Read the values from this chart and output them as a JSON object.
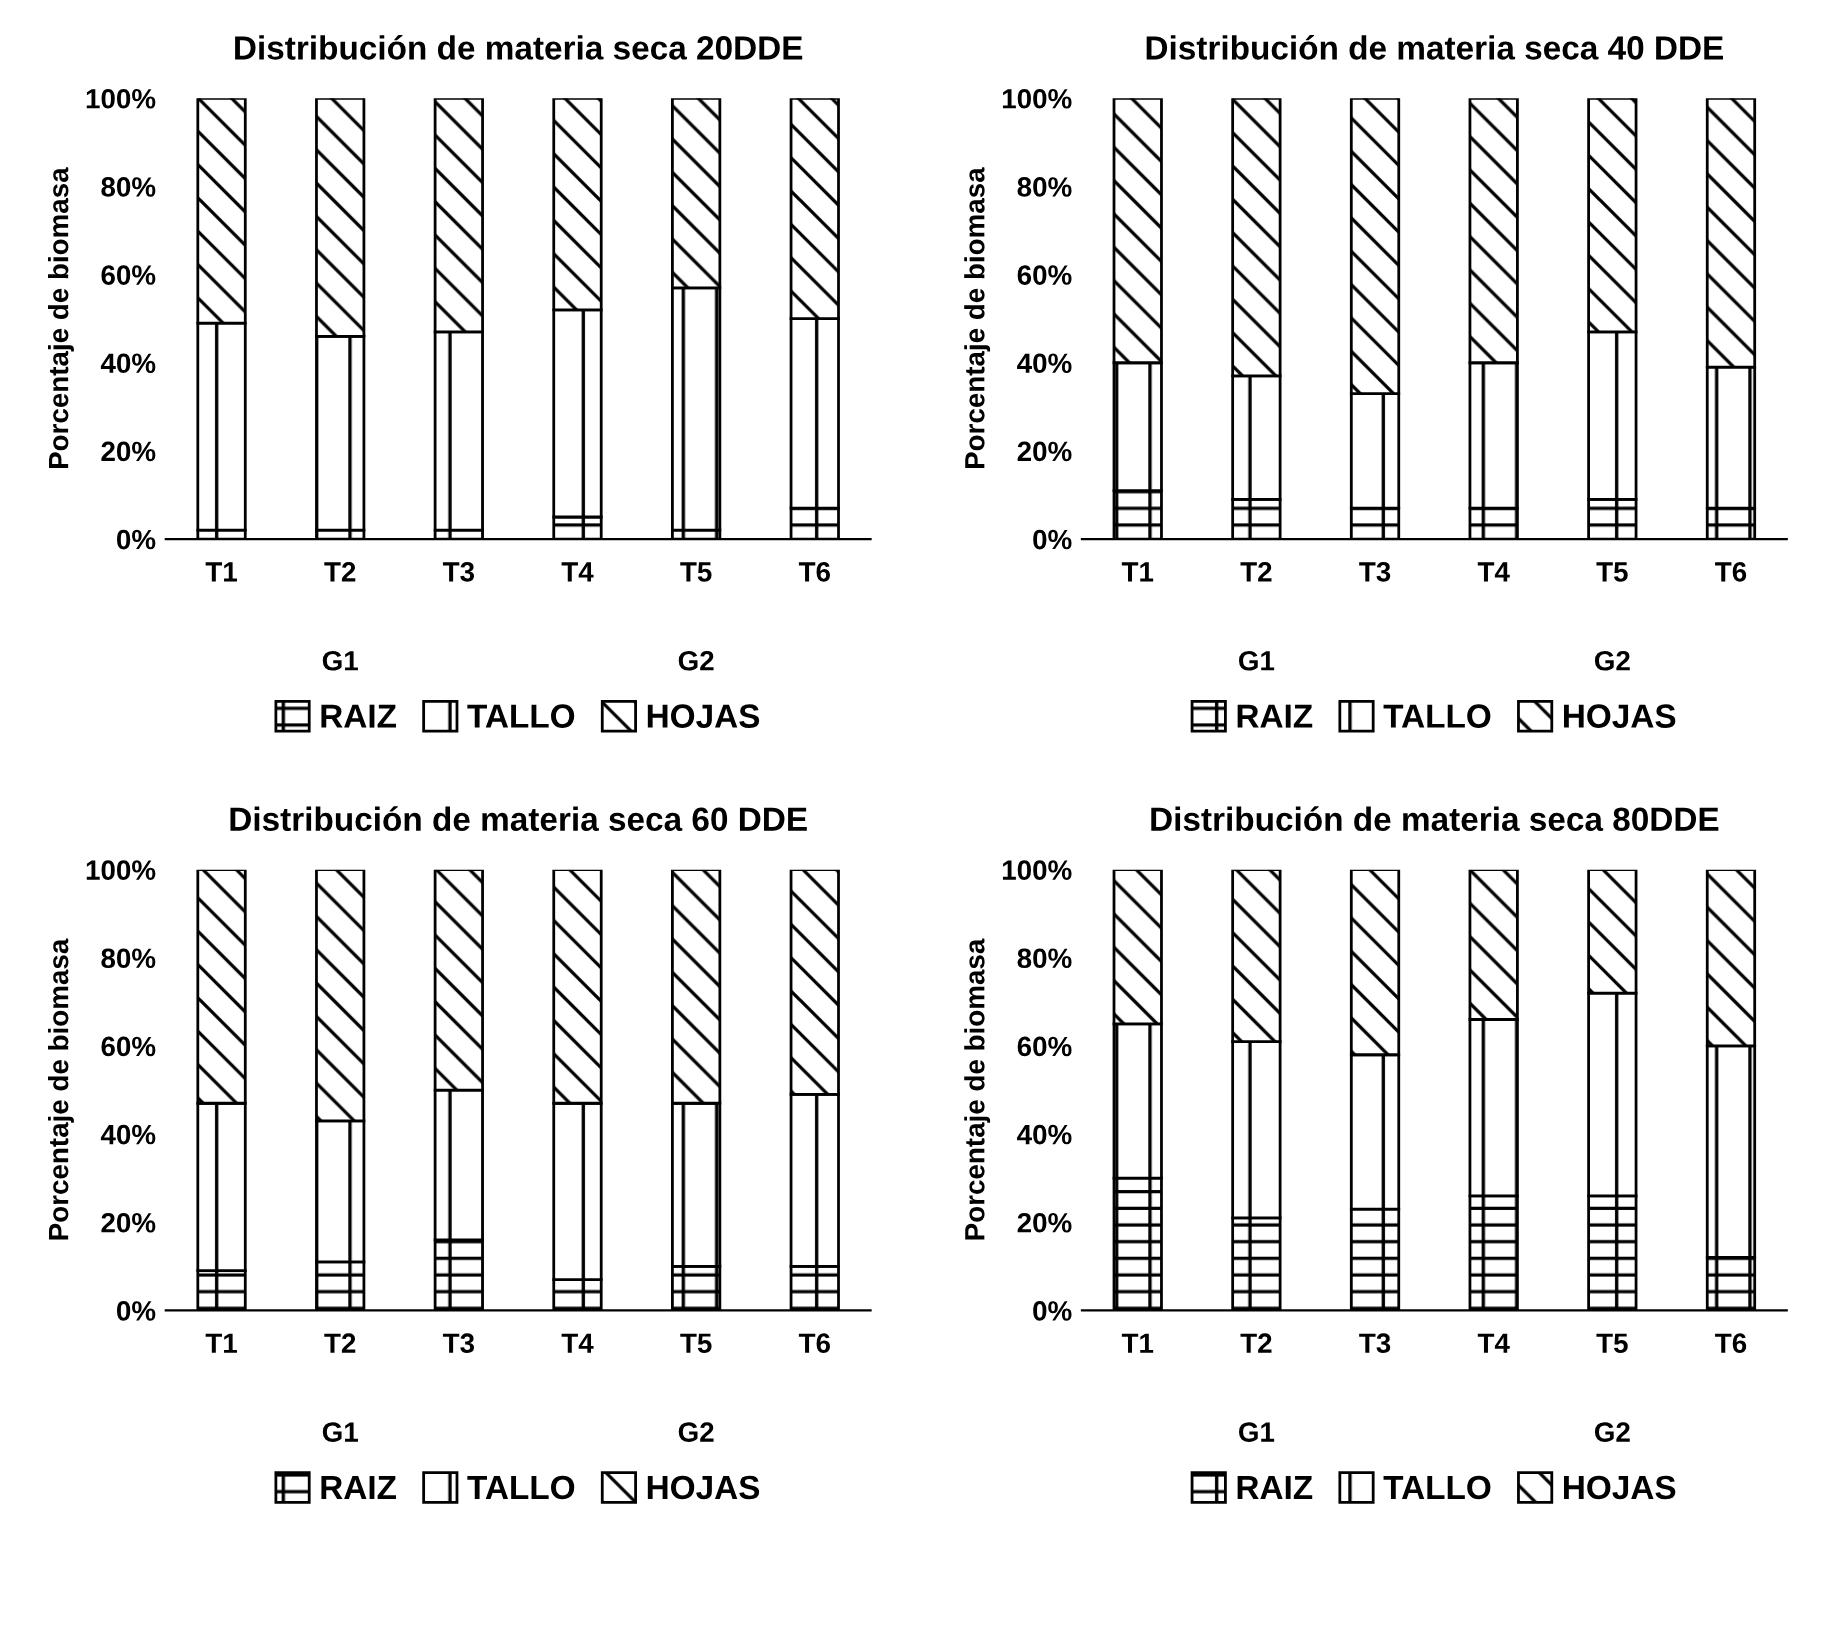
{
  "chart_data": [
    {
      "type": "bar",
      "title": "Distribución de materia seca 20DDE",
      "ylabel": "Porcentaje de biomasa",
      "stacked": true,
      "legend": "bottom",
      "grid": false,
      "categories": [
        "T1",
        "T2",
        "T3",
        "T4",
        "T5",
        "T6"
      ],
      "annotations": [
        "G1",
        "G2"
      ],
      "ylim": [
        0,
        100
      ],
      "yticks": [
        {
          "value": 0,
          "label": "0%"
        },
        {
          "value": 20,
          "label": "20%"
        },
        {
          "value": 40,
          "label": "40%"
        },
        {
          "value": 60,
          "label": "60%"
        },
        {
          "value": 80,
          "label": "80%"
        },
        {
          "value": 100,
          "label": "100%"
        }
      ],
      "series": [
        {
          "name": "RAIZ",
          "color": "#000000",
          "values": [
            2,
            2,
            2,
            5,
            2,
            7
          ]
        },
        {
          "name": "TALLO",
          "color": "#000000",
          "values": [
            47,
            44,
            45,
            47,
            55,
            43
          ]
        },
        {
          "name": "HOJAS",
          "color": "#000000",
          "values": [
            51,
            54,
            53,
            48,
            43,
            50
          ]
        }
      ]
    },
    {
      "type": "bar",
      "title": "Distribución de materia seca 40 DDE",
      "ylabel": "Porcentaje de biomasa",
      "stacked": true,
      "legend": "bottom",
      "grid": false,
      "categories": [
        "T1",
        "T2",
        "T3",
        "T4",
        "T5",
        "T6"
      ],
      "annotations": [
        "G1",
        "G2"
      ],
      "ylim": [
        0,
        100
      ],
      "yticks": [
        {
          "value": 0,
          "label": "0%"
        },
        {
          "value": 20,
          "label": "20%"
        },
        {
          "value": 40,
          "label": "40%"
        },
        {
          "value": 60,
          "label": "60%"
        },
        {
          "value": 80,
          "label": "80%"
        },
        {
          "value": 100,
          "label": "100%"
        }
      ],
      "series": [
        {
          "name": "RAIZ",
          "color": "#000000",
          "values": [
            11,
            9,
            7,
            7,
            9,
            7
          ]
        },
        {
          "name": "TALLO",
          "color": "#000000",
          "values": [
            29,
            28,
            26,
            33,
            38,
            32
          ]
        },
        {
          "name": "HOJAS",
          "color": "#000000",
          "values": [
            60,
            63,
            67,
            60,
            53,
            61
          ]
        }
      ]
    },
    {
      "type": "bar",
      "title": "Distribución de materia seca 60 DDE",
      "ylabel": "Porcentaje de biomasa",
      "stacked": true,
      "legend": "bottom",
      "grid": false,
      "categories": [
        "T1",
        "T2",
        "T3",
        "T4",
        "T5",
        "T6"
      ],
      "annotations": [
        "G1",
        "G2"
      ],
      "ylim": [
        0,
        100
      ],
      "yticks": [
        {
          "value": 0,
          "label": "0%"
        },
        {
          "value": 20,
          "label": "20%"
        },
        {
          "value": 40,
          "label": "40%"
        },
        {
          "value": 60,
          "label": "60%"
        },
        {
          "value": 80,
          "label": "80%"
        },
        {
          "value": 100,
          "label": "100%"
        }
      ],
      "series": [
        {
          "name": "RAIZ",
          "color": "#000000",
          "values": [
            9,
            11,
            16,
            7,
            10,
            10
          ]
        },
        {
          "name": "TALLO",
          "color": "#000000",
          "values": [
            38,
            32,
            34,
            40,
            37,
            39
          ]
        },
        {
          "name": "HOJAS",
          "color": "#000000",
          "values": [
            53,
            57,
            50,
            53,
            53,
            51
          ]
        }
      ]
    },
    {
      "type": "bar",
      "title": "Distribución de materia seca 80DDE",
      "ylabel": "Porcentaje de biomasa",
      "stacked": true,
      "legend": "bottom",
      "grid": false,
      "categories": [
        "T1",
        "T2",
        "T3",
        "T4",
        "T5",
        "T6"
      ],
      "annotations": [
        "G1",
        "G2"
      ],
      "ylim": [
        0,
        100
      ],
      "yticks": [
        {
          "value": 0,
          "label": "0%"
        },
        {
          "value": 20,
          "label": "20%"
        },
        {
          "value": 40,
          "label": "40%"
        },
        {
          "value": 60,
          "label": "60%"
        },
        {
          "value": 80,
          "label": "80%"
        },
        {
          "value": 100,
          "label": "100%"
        }
      ],
      "series": [
        {
          "name": "RAIZ",
          "color": "#000000",
          "values": [
            30,
            21,
            23,
            26,
            26,
            12
          ]
        },
        {
          "name": "TALLO",
          "color": "#000000",
          "values": [
            35,
            40,
            35,
            40,
            46,
            48
          ]
        },
        {
          "name": "HOJAS",
          "color": "#000000",
          "values": [
            35,
            39,
            42,
            34,
            28,
            40
          ]
        }
      ]
    }
  ]
}
